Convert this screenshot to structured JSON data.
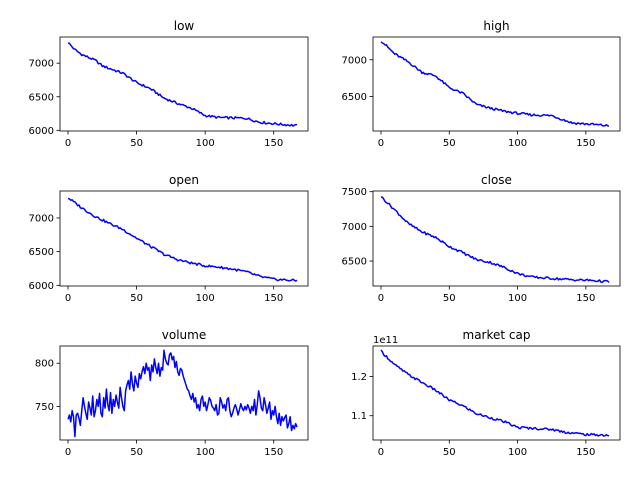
{
  "style": {
    "line_color": "#0000ff",
    "background": "#ffffff"
  },
  "chart_data": [
    {
      "type": "line",
      "title": "low",
      "xlim": [
        -5.85,
        175
      ],
      "ylim": [
        5990,
        7390
      ],
      "xticks": [
        0,
        50,
        100,
        150
      ],
      "yticks": [
        6000,
        6500,
        7000
      ],
      "ytick_labels": [
        "6000",
        "6500",
        "7000"
      ],
      "x_count": 168,
      "trend": [
        [
          0,
          7310
        ],
        [
          5,
          7200
        ],
        [
          10,
          7130
        ],
        [
          20,
          7040
        ],
        [
          25,
          6960
        ],
        [
          40,
          6850
        ],
        [
          50,
          6710
        ],
        [
          60,
          6620
        ],
        [
          70,
          6480
        ],
        [
          80,
          6400
        ],
        [
          90,
          6330
        ],
        [
          100,
          6220
        ],
        [
          110,
          6190
        ],
        [
          130,
          6180
        ],
        [
          140,
          6120
        ],
        [
          155,
          6090
        ],
        [
          167,
          6070
        ]
      ]
    },
    {
      "type": "line",
      "title": "high",
      "xlim": [
        -5.85,
        175
      ],
      "ylim": [
        6030,
        7310
      ],
      "xticks": [
        0,
        50,
        100,
        150
      ],
      "yticks": [
        6500,
        7000
      ],
      "ytick_labels": [
        "6500",
        "7000"
      ],
      "x_count": 168,
      "trend": [
        [
          0,
          7260
        ],
        [
          10,
          7080
        ],
        [
          20,
          6970
        ],
        [
          30,
          6830
        ],
        [
          40,
          6780
        ],
        [
          50,
          6620
        ],
        [
          60,
          6540
        ],
        [
          70,
          6390
        ],
        [
          80,
          6340
        ],
        [
          90,
          6300
        ],
        [
          100,
          6270
        ],
        [
          110,
          6250
        ],
        [
          125,
          6240
        ],
        [
          140,
          6140
        ],
        [
          155,
          6120
        ],
        [
          167,
          6100
        ]
      ]
    },
    {
      "type": "line",
      "title": "open",
      "xlim": [
        -5.85,
        175
      ],
      "ylim": [
        5990,
        7400
      ],
      "xticks": [
        0,
        50,
        100,
        150
      ],
      "yticks": [
        6000,
        6500,
        7000
      ],
      "ytick_labels": [
        "6000",
        "6500",
        "7000"
      ],
      "x_count": 168,
      "trend": [
        [
          0,
          7300
        ],
        [
          10,
          7150
        ],
        [
          20,
          7020
        ],
        [
          30,
          6920
        ],
        [
          40,
          6830
        ],
        [
          50,
          6700
        ],
        [
          60,
          6580
        ],
        [
          70,
          6460
        ],
        [
          80,
          6380
        ],
        [
          90,
          6330
        ],
        [
          100,
          6290
        ],
        [
          110,
          6270
        ],
        [
          120,
          6240
        ],
        [
          130,
          6200
        ],
        [
          140,
          6130
        ],
        [
          150,
          6090
        ],
        [
          167,
          6070
        ]
      ]
    },
    {
      "type": "line",
      "title": "close",
      "xlim": [
        -5.85,
        175
      ],
      "ylim": [
        6140,
        7510
      ],
      "xticks": [
        0,
        50,
        100,
        150
      ],
      "yticks": [
        6500,
        7000,
        7500
      ],
      "ytick_labels": [
        "6500",
        "7000",
        "7500"
      ],
      "x_count": 168,
      "trend": [
        [
          0,
          7430
        ],
        [
          10,
          7240
        ],
        [
          20,
          7040
        ],
        [
          30,
          6920
        ],
        [
          40,
          6840
        ],
        [
          50,
          6710
        ],
        [
          60,
          6620
        ],
        [
          70,
          6520
        ],
        [
          80,
          6480
        ],
        [
          90,
          6410
        ],
        [
          100,
          6320
        ],
        [
          110,
          6270
        ],
        [
          125,
          6250
        ],
        [
          140,
          6230
        ],
        [
          155,
          6220
        ],
        [
          167,
          6200
        ]
      ]
    },
    {
      "type": "line",
      "title": "volume",
      "xlim": [
        -5.85,
        175
      ],
      "ylim": [
        711,
        820
      ],
      "xticks": [
        0,
        50,
        100,
        150
      ],
      "yticks": [
        750,
        800
      ],
      "ytick_labels": [
        "750",
        "800"
      ],
      "x_count": 168,
      "y": [
        735,
        740,
        732,
        745,
        738,
        715,
        740,
        742,
        736,
        728,
        745,
        760,
        750,
        742,
        735,
        755,
        748,
        740,
        762,
        738,
        745,
        758,
        750,
        765,
        742,
        738,
        760,
        748,
        770,
        752,
        745,
        766,
        742,
        758,
        750,
        763,
        755,
        748,
        772,
        760,
        750,
        745,
        768,
        775,
        780,
        770,
        790,
        776,
        768,
        785,
        777,
        772,
        788,
        782,
        790,
        796,
        788,
        800,
        792,
        795,
        780,
        798,
        790,
        805,
        795,
        788,
        800,
        785,
        795,
        792,
        815,
        805,
        800,
        798,
        810,
        812,
        804,
        808,
        795,
        802,
        790,
        786,
        794,
        792,
        785,
        780,
        775,
        770,
        768,
        762,
        758,
        765,
        755,
        760,
        748,
        752,
        745,
        758,
        762,
        750,
        755,
        745,
        752,
        760,
        757,
        750,
        748,
        745,
        752,
        740,
        742,
        760,
        755,
        748,
        752,
        745,
        758,
        760,
        745,
        738,
        742,
        748,
        752,
        747,
        740,
        746,
        753,
        748,
        745,
        750,
        746,
        752,
        748,
        742,
        750,
        745,
        758,
        740,
        752,
        768,
        760,
        748,
        745,
        760,
        752,
        742,
        748,
        755,
        735,
        745,
        740,
        750,
        738,
        730,
        742,
        728,
        738,
        733,
        737,
        740,
        725,
        730,
        738,
        722,
        728,
        724,
        730,
        726
      ]
    },
    {
      "type": "line",
      "title": "market cap",
      "offset_label": "1e11",
      "xlim": [
        -5.85,
        175
      ],
      "ylim": [
        1.038,
        1.278
      ],
      "xticks": [
        0,
        50,
        100,
        150
      ],
      "yticks": [
        1.1,
        1.2
      ],
      "ytick_labels": [
        "1.1",
        "1.2"
      ],
      "x_count": 168,
      "trend": [
        [
          0,
          1.265
        ],
        [
          10,
          1.23
        ],
        [
          20,
          1.205
        ],
        [
          30,
          1.185
        ],
        [
          40,
          1.165
        ],
        [
          50,
          1.14
        ],
        [
          60,
          1.125
        ],
        [
          70,
          1.105
        ],
        [
          80,
          1.095
        ],
        [
          90,
          1.085
        ],
        [
          100,
          1.07
        ],
        [
          110,
          1.068
        ],
        [
          125,
          1.065
        ],
        [
          135,
          1.058
        ],
        [
          150,
          1.052
        ],
        [
          167,
          1.05
        ]
      ]
    }
  ]
}
